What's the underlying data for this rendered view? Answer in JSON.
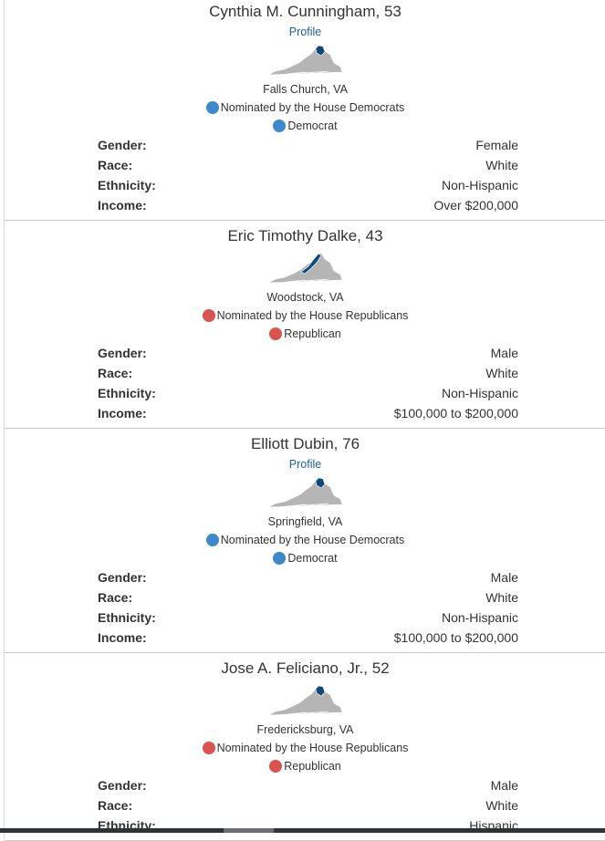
{
  "candidates": [
    {
      "name": "Cynthia M. Cunningham, 53",
      "profile": "Profile",
      "location": "Falls Church, VA",
      "nomination": "Nominated by the House Democrats",
      "party": "Democrat",
      "dot_color": "#3d89cc",
      "fields": [
        {
          "label": "Gender:",
          "value": "Female"
        },
        {
          "label": "Race:",
          "value": "White"
        },
        {
          "label": "Ethnicity:",
          "value": "Non-Hispanic"
        },
        {
          "label": "Income:",
          "value": "Over $200,000"
        }
      ]
    },
    {
      "name": "Eric Timothy Dalke, 43",
      "location": "Woodstock, VA",
      "nomination": "Nominated by the House Republicans",
      "party": "Republican",
      "dot_color": "#d9534f",
      "fields": [
        {
          "label": "Gender:",
          "value": "Male"
        },
        {
          "label": "Race:",
          "value": "White"
        },
        {
          "label": "Ethnicity:",
          "value": "Non-Hispanic"
        },
        {
          "label": "Income:",
          "value": "$100,000 to $200,000"
        }
      ]
    },
    {
      "name": "Elliott Dubin, 76",
      "profile": "Profile",
      "location": "Springfield, VA",
      "nomination": "Nominated by the House Democrats",
      "party": "Democrat",
      "dot_color": "#3d89cc",
      "fields": [
        {
          "label": "Gender:",
          "value": "Male"
        },
        {
          "label": "Race:",
          "value": "White"
        },
        {
          "label": "Ethnicity:",
          "value": "Non-Hispanic"
        },
        {
          "label": "Income:",
          "value": "$100,000 to $200,000"
        }
      ]
    },
    {
      "name": "Jose A. Feliciano, Jr., 52",
      "location": "Fredericksburg, VA",
      "nomination": "Nominated by the House Republicans",
      "party": "Republican",
      "dot_color": "#d9534f",
      "fields": [
        {
          "label": "Gender:",
          "value": "Male"
        },
        {
          "label": "Race:",
          "value": "White"
        },
        {
          "label": "Ethnicity:",
          "value": "Hispanic"
        }
      ]
    }
  ]
}
